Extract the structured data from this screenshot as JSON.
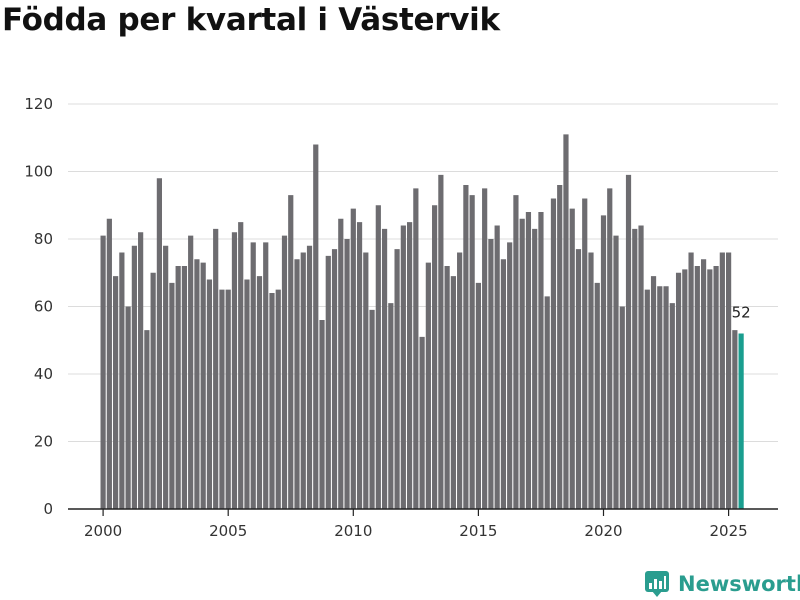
{
  "colors": {
    "bar": "#6d6c70",
    "highlight": "#1a9e8f",
    "grid": "#dcdcdc",
    "axis": "#222222",
    "brand": "#2a9d8f"
  },
  "branding": {
    "name": "Newsworthy",
    "icon": "newsworthy-logo-icon"
  },
  "chart_data": {
    "type": "bar",
    "title": "Födda per kvartal i Västervik",
    "xlabel": "",
    "ylabel": "",
    "ylim": [
      0,
      120
    ],
    "yticks": [
      "0",
      "20",
      "40",
      "60",
      "80",
      "100",
      "120"
    ],
    "xticks": [
      "2000",
      "2005",
      "2010",
      "2015",
      "2020",
      "2025"
    ],
    "start_year": 2000,
    "quarters_per_year": 4,
    "values": [
      81,
      86,
      69,
      76,
      60,
      78,
      82,
      53,
      70,
      98,
      78,
      67,
      72,
      72,
      81,
      74,
      73,
      68,
      83,
      65,
      65,
      82,
      85,
      68,
      79,
      69,
      79,
      64,
      65,
      81,
      93,
      74,
      76,
      78,
      108,
      56,
      75,
      77,
      86,
      80,
      89,
      85,
      76,
      59,
      90,
      83,
      61,
      77,
      84,
      85,
      95,
      51,
      73,
      90,
      99,
      72,
      69,
      76,
      96,
      93,
      67,
      95,
      80,
      84,
      74,
      79,
      93,
      86,
      88,
      83,
      88,
      63,
      92,
      96,
      111,
      89,
      77,
      92,
      76,
      67,
      87,
      95,
      81,
      60,
      99,
      83,
      84,
      65,
      69,
      66,
      66,
      61,
      70,
      71,
      76,
      72,
      74,
      71,
      72,
      76,
      76,
      53,
      52
    ],
    "highlight_index": 102,
    "highlight_label": "52"
  }
}
